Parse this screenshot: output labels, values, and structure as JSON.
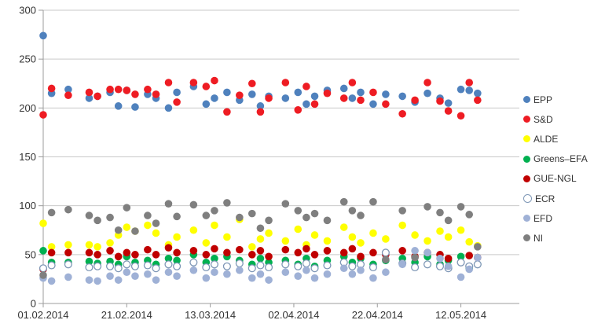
{
  "chart_data": {
    "type": "scatter",
    "title": "",
    "xlabel": "",
    "ylabel": "",
    "grid": "horizontal",
    "legend_position": "right",
    "x_axis": {
      "tick_labels": [
        "01.02.2014",
        "21.02.2014",
        "13.03.2014",
        "02.04.2014",
        "22.04.2014",
        "12.05.2014"
      ],
      "tick_days": [
        0,
        20,
        40,
        60,
        80,
        100
      ],
      "range_days": [
        0,
        114
      ]
    },
    "y_axis": {
      "ticks": [
        0,
        50,
        100,
        150,
        200,
        250,
        300
      ],
      "range": [
        0,
        300
      ]
    },
    "columns": [
      {
        "day": 0,
        "date": "01.02.2014"
      },
      {
        "day": 2,
        "date": "03.02.2014"
      },
      {
        "day": 6,
        "date": "07.02.2014"
      },
      {
        "day": 11,
        "date": "12.02.2014"
      },
      {
        "day": 13,
        "date": "14.02.2014"
      },
      {
        "day": 16,
        "date": "17.02.2014"
      },
      {
        "day": 18,
        "date": "19.02.2014"
      },
      {
        "day": 20,
        "date": "21.02.2014"
      },
      {
        "day": 22,
        "date": "23.02.2014"
      },
      {
        "day": 25,
        "date": "26.02.2014"
      },
      {
        "day": 27,
        "date": "28.02.2014"
      },
      {
        "day": 30,
        "date": "03.03.2014"
      },
      {
        "day": 32,
        "date": "05.03.2014"
      },
      {
        "day": 36,
        "date": "09.03.2014"
      },
      {
        "day": 39,
        "date": "12.03.2014"
      },
      {
        "day": 41,
        "date": "14.03.2014"
      },
      {
        "day": 44,
        "date": "17.03.2014"
      },
      {
        "day": 47,
        "date": "20.03.2014"
      },
      {
        "day": 50,
        "date": "23.03.2014"
      },
      {
        "day": 52,
        "date": "25.03.2014"
      },
      {
        "day": 54,
        "date": "27.03.2014"
      },
      {
        "day": 58,
        "date": "31.03.2014"
      },
      {
        "day": 61,
        "date": "03.04.2014"
      },
      {
        "day": 63,
        "date": "05.04.2014"
      },
      {
        "day": 65,
        "date": "07.04.2014"
      },
      {
        "day": 68,
        "date": "10.04.2014"
      },
      {
        "day": 72,
        "date": "14.04.2014"
      },
      {
        "day": 74,
        "date": "16.04.2014"
      },
      {
        "day": 76,
        "date": "18.04.2014"
      },
      {
        "day": 79,
        "date": "21.04.2014"
      },
      {
        "day": 82,
        "date": "24.04.2014"
      },
      {
        "day": 86,
        "date": "28.04.2014"
      },
      {
        "day": 89,
        "date": "01.05.2014"
      },
      {
        "day": 92,
        "date": "04.05.2014"
      },
      {
        "day": 95,
        "date": "07.05.2014"
      },
      {
        "day": 97,
        "date": "09.05.2014"
      },
      {
        "day": 100,
        "date": "12.05.2014"
      },
      {
        "day": 102,
        "date": "14.05.2014"
      },
      {
        "day": 104,
        "date": "16.05.2014"
      }
    ],
    "series": [
      {
        "name": "EPP",
        "color": "#4F81BD",
        "marker": "filled",
        "values": [
          274,
          215,
          219,
          210,
          212,
          216,
          202,
          218,
          201,
          214,
          210,
          200,
          216,
          222,
          204,
          210,
          216,
          208,
          214,
          202,
          212,
          210,
          216,
          204,
          212,
          218,
          220,
          210,
          216,
          204,
          214,
          212,
          206,
          215,
          210,
          205,
          219,
          218,
          215
        ]
      },
      {
        "name": "S&D",
        "color": "#EE1C23",
        "marker": "filled",
        "values": [
          193,
          220,
          213,
          216,
          212,
          219,
          219,
          218,
          214,
          219,
          214,
          226,
          206,
          226,
          222,
          228,
          196,
          213,
          225,
          196,
          210,
          226,
          198,
          222,
          204,
          215,
          210,
          226,
          208,
          216,
          204,
          194,
          208,
          226,
          207,
          197,
          192,
          226,
          208
        ]
      },
      {
        "name": "ALDE",
        "color": "#FFFF00",
        "marker": "filled",
        "values": [
          82,
          58,
          60,
          60,
          58,
          62,
          70,
          78,
          74,
          80,
          72,
          60,
          68,
          75,
          62,
          80,
          68,
          86,
          58,
          66,
          72,
          64,
          76,
          60,
          70,
          64,
          78,
          68,
          62,
          72,
          66,
          80,
          70,
          64,
          74,
          68,
          75,
          63,
          59
        ]
      },
      {
        "name": "Greens–EFA",
        "color": "#00B050",
        "marker": "filled",
        "values": [
          54,
          42,
          42,
          43,
          41,
          43,
          40,
          48,
          42,
          44,
          40,
          46,
          44,
          50,
          42,
          46,
          48,
          44,
          40,
          46,
          42,
          44,
          40,
          46,
          38,
          44,
          48,
          42,
          46,
          40,
          44,
          46,
          42,
          48,
          40,
          44,
          48,
          36,
          40
        ]
      },
      {
        "name": "GUE-NGL",
        "color": "#C00000",
        "marker": "filled",
        "values": [
          35,
          52,
          52,
          52,
          50,
          54,
          48,
          52,
          50,
          55,
          50,
          57,
          52,
          54,
          50,
          56,
          52,
          55,
          50,
          54,
          48,
          55,
          52,
          56,
          50,
          54,
          52,
          56,
          48,
          52,
          50,
          54,
          48,
          52,
          50,
          46,
          42,
          49,
          47
        ]
      },
      {
        "name": "ECR",
        "color": "#FFFFFF",
        "stroke": "#7E97B6",
        "marker": "hollow",
        "values": [
          36,
          39,
          40,
          37,
          38,
          38,
          36,
          40,
          38,
          39,
          36,
          40,
          38,
          42,
          37,
          40,
          38,
          41,
          36,
          39,
          37,
          40,
          38,
          41,
          36,
          39,
          42,
          38,
          40,
          37,
          52,
          41,
          37,
          40,
          38,
          36,
          42,
          38,
          40
        ]
      },
      {
        "name": "EFD",
        "color": "#9FB1D6",
        "marker": "filled",
        "values": [
          26,
          23,
          27,
          24,
          23,
          28,
          24,
          32,
          28,
          30,
          24,
          32,
          28,
          34,
          26,
          32,
          30,
          34,
          26,
          30,
          24,
          32,
          28,
          34,
          26,
          30,
          36,
          30,
          34,
          26,
          32,
          40,
          54,
          52,
          46,
          38,
          27,
          35,
          47
        ]
      },
      {
        "name": "NI",
        "color": "#7F7F7F",
        "marker": "filled",
        "values": [
          29,
          93,
          96,
          90,
          85,
          88,
          75,
          98,
          74,
          90,
          82,
          102,
          89,
          101,
          90,
          95,
          103,
          88,
          92,
          77,
          85,
          102,
          95,
          88,
          92,
          85,
          104,
          95,
          90,
          104,
          45,
          95,
          47,
          99,
          93,
          85,
          99,
          91,
          58
        ]
      }
    ],
    "style": {
      "gridline_color": "#C9C9C9",
      "axis_color": "#9C9C9C",
      "tick_label_color": "#333333",
      "point_radius": 4.8
    }
  }
}
